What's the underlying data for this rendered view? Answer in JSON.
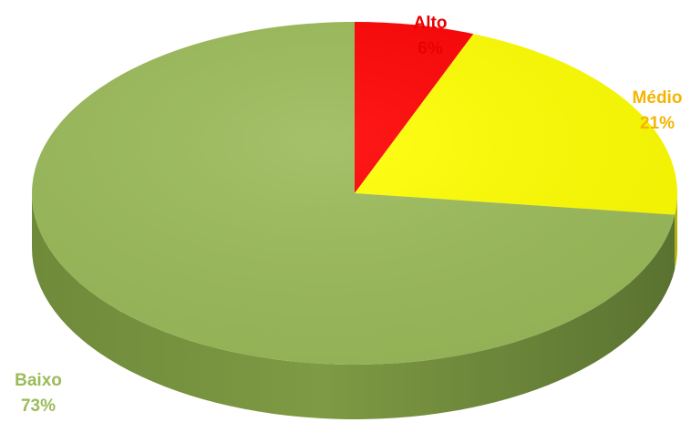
{
  "chart_data": {
    "type": "pie",
    "style": "3d",
    "slices": [
      {
        "label": "Alto",
        "value": 6,
        "display": "6%",
        "color": "#FF0000",
        "label_color": "#E80000"
      },
      {
        "label": "Médio",
        "value": 21,
        "display": "21%",
        "color": "#FFFF00",
        "label_color": "#F5B400"
      },
      {
        "label": "Baixo",
        "value": 73,
        "display": "73%",
        "color": "#9BBB59",
        "label_color": "#9BBB59"
      }
    ],
    "start_angle_deg": 0,
    "direction": "clockwise",
    "legend": "none"
  }
}
